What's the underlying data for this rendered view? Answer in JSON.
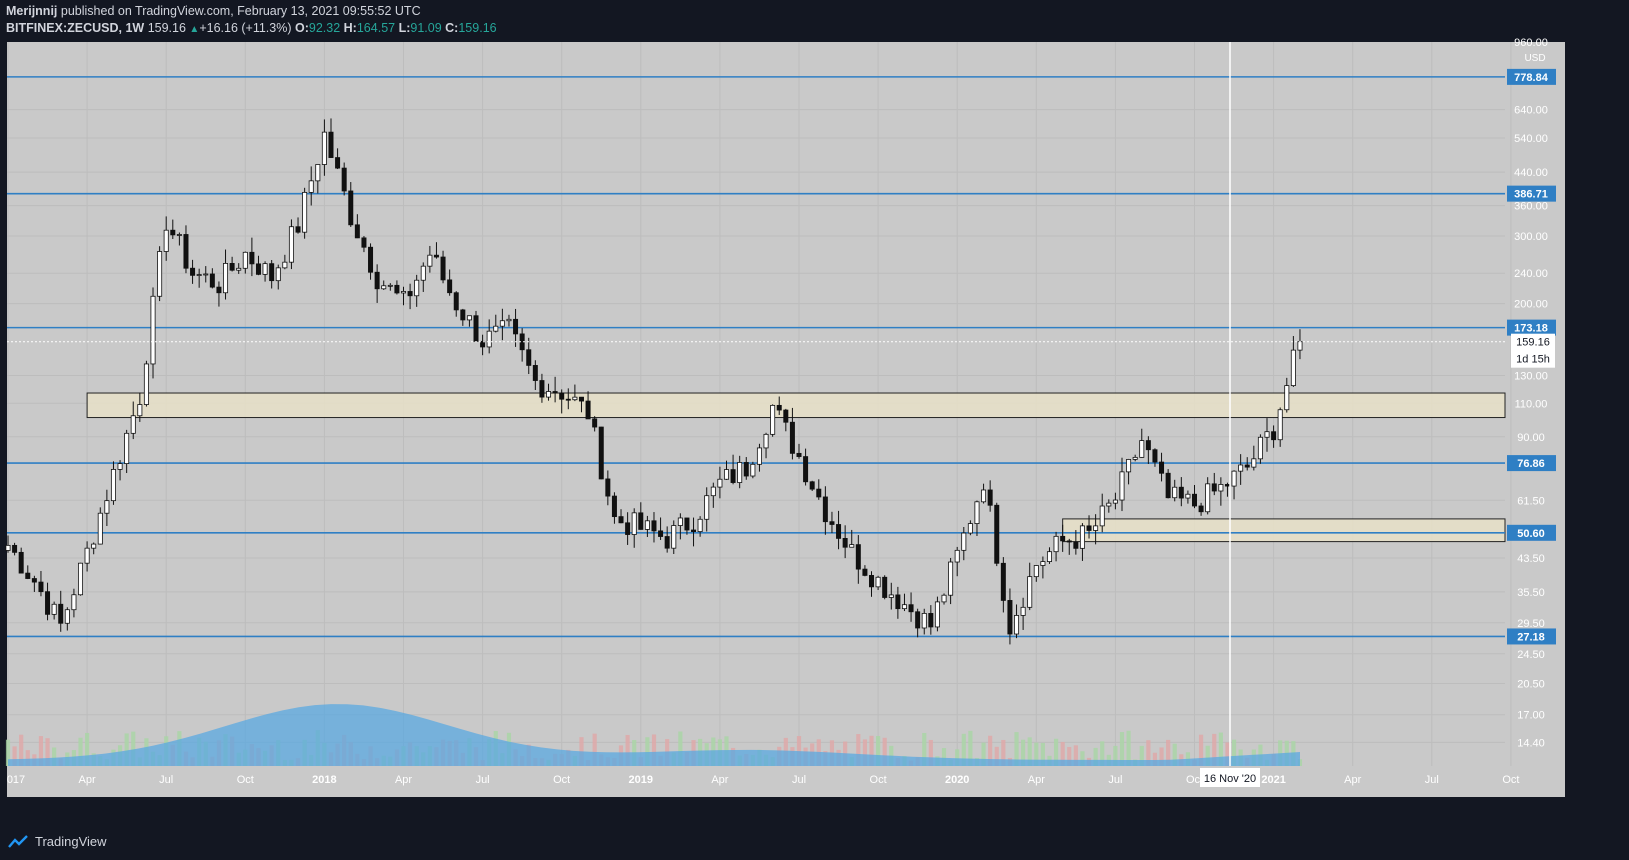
{
  "header": {
    "author": "Merijnnij",
    "published": " published on TradingView.com, February 13, 2021 09:55:52 UTC",
    "symbol": "BITFINEX:ZECUSD, 1W",
    "last": "159.16",
    "change": "+16.16 (+11.3%)",
    "o_label": "O:",
    "o_value": "92.32",
    "h_label": "H:",
    "h_value": "164.57",
    "l_label": "L:",
    "l_value": "91.09",
    "c_label": "C:",
    "c_value": "159.16"
  },
  "footer": {
    "brand": "TradingView"
  },
  "colors": {
    "background": "#131722",
    "plot": "#c9c9c9",
    "level_line": "#2f7fc4",
    "zone_fill": "#e8e0c8",
    "volume_ma": "#5aa8e0",
    "volume_up": "#a9d6a5",
    "volume_down": "#e0a8a8"
  },
  "chart_data": {
    "type": "candlestick",
    "scale": "log",
    "currency": "USD",
    "ylim": [
      12.5,
      960
    ],
    "y_ticks": [
      "14.40",
      "17.00",
      "20.50",
      "24.50",
      "29.50",
      "35.50",
      "43.50",
      "61.50",
      "90.00",
      "110.00",
      "130.00",
      "200.00",
      "240.00",
      "300.00",
      "360.00",
      "440.00",
      "540.00",
      "640.00"
    ],
    "top_tick": "960.00",
    "x_ticks": [
      "017",
      "Apr",
      "Jul",
      "Oct",
      "2018",
      "Apr",
      "Jul",
      "Oct",
      "2019",
      "Apr",
      "Jul",
      "Oct",
      "2020",
      "Apr",
      "Jul",
      "Oct",
      "2021",
      "Apr",
      "Jul",
      "Oct"
    ],
    "crosshair_date": "16 Nov '20",
    "levels": [
      778.84,
      386.71,
      173.18,
      76.86,
      50.6,
      27.18
    ],
    "level_labels": [
      "778.84",
      "386.71",
      "173.18",
      "76.86",
      "50.60",
      "27.18"
    ],
    "current_price": "159.16",
    "countdown": "1d 15h",
    "zones": [
      {
        "x_start": "2017-04",
        "x_end": "2021-02",
        "low": 101,
        "high": 117
      },
      {
        "x_start": "2020-05",
        "x_end": "2021-02",
        "low": 48,
        "high": 55
      }
    ],
    "price_path": [
      [
        "2017-01",
        47
      ],
      [
        "2017-02",
        38
      ],
      [
        "2017-03",
        29
      ],
      [
        "2017-04",
        45
      ],
      [
        "2017-05",
        72
      ],
      [
        "2017-06",
        115
      ],
      [
        "2017-07",
        330
      ],
      [
        "2017-08",
        240
      ],
      [
        "2017-09",
        225
      ],
      [
        "2017-10",
        270
      ],
      [
        "2017-11",
        235
      ],
      [
        "2017-12",
        320
      ],
      [
        "2018-01",
        550
      ],
      [
        "2018-02",
        340
      ],
      [
        "2018-03",
        235
      ],
      [
        "2018-04",
        200
      ],
      [
        "2018-05",
        270
      ],
      [
        "2018-06",
        200
      ],
      [
        "2018-07",
        160
      ],
      [
        "2018-08",
        170
      ],
      [
        "2018-09",
        125
      ],
      [
        "2018-10",
        118
      ],
      [
        "2018-11",
        104
      ],
      [
        "2018-12",
        55
      ],
      [
        "2019-01",
        52
      ],
      [
        "2019-02",
        49
      ],
      [
        "2019-03",
        55
      ],
      [
        "2019-04",
        68
      ],
      [
        "2019-05",
        75
      ],
      [
        "2019-06",
        108
      ],
      [
        "2019-07",
        80
      ],
      [
        "2019-08",
        58
      ],
      [
        "2019-09",
        45
      ],
      [
        "2019-10",
        38
      ],
      [
        "2019-11",
        33
      ],
      [
        "2019-12",
        29
      ],
      [
        "2020-01",
        44
      ],
      [
        "2020-02",
        70
      ],
      [
        "2020-03",
        29
      ],
      [
        "2020-04",
        42
      ],
      [
        "2020-05",
        48
      ],
      [
        "2020-06",
        50
      ],
      [
        "2020-07",
        62
      ],
      [
        "2020-08",
        88
      ],
      [
        "2020-09",
        62
      ],
      [
        "2020-10",
        60
      ],
      [
        "2020-11",
        66
      ],
      [
        "2020-12",
        75
      ],
      [
        "2021-01",
        95
      ],
      [
        "2021-02",
        159.16
      ]
    ]
  }
}
